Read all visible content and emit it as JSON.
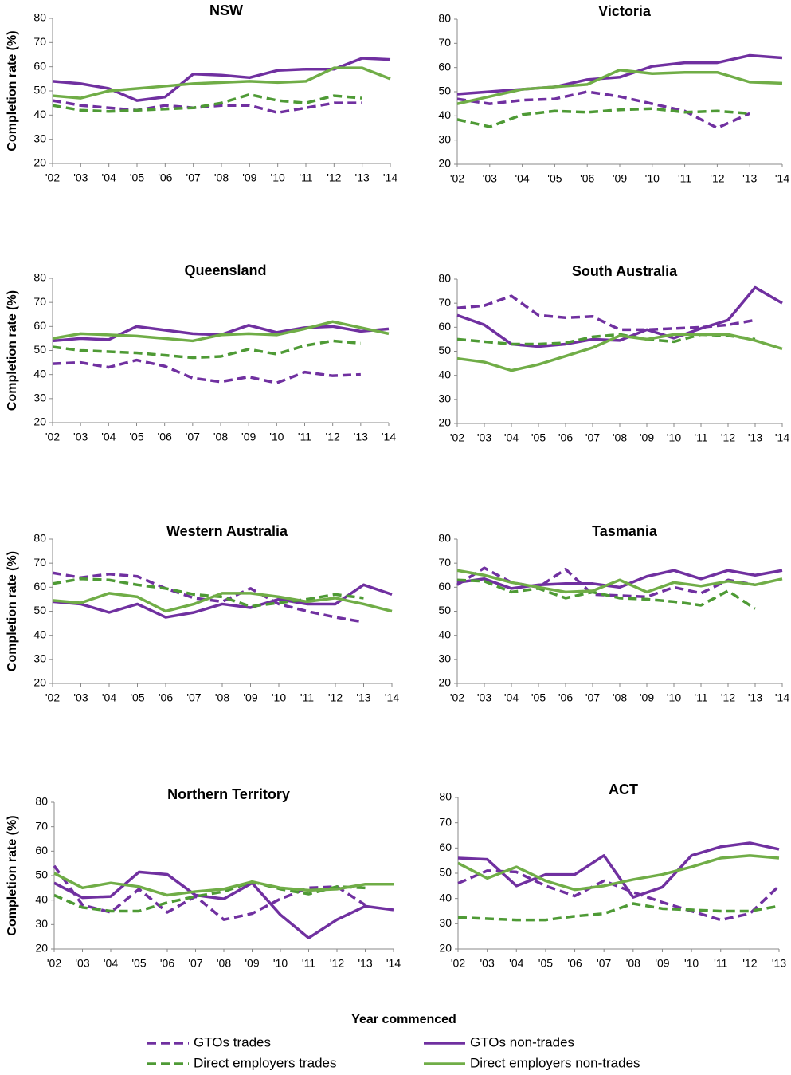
{
  "xlabel": "Year commenced",
  "legend": [
    {
      "name": "GTOs trades",
      "color": "#7030a0",
      "dashed": true
    },
    {
      "name": "GTOs non-trades",
      "color": "#7030a0",
      "dashed": false
    },
    {
      "name": "Direct employers trades",
      "color": "#4e9a35",
      "dashed": true
    },
    {
      "name": "Direct employers non-trades",
      "color": "#70ad47",
      "dashed": false
    }
  ],
  "chart_data": [
    {
      "type": "line",
      "title": "NSW",
      "ylabel": "Completion rate (%)",
      "ylim": [
        20,
        80
      ],
      "yticks": [
        20,
        30,
        40,
        50,
        60,
        70,
        80
      ],
      "categories": [
        "'02",
        "'03",
        "'04",
        "'05",
        "'06",
        "'07",
        "'08",
        "'09",
        "'10",
        "'11",
        "'12",
        "'13",
        "'14"
      ],
      "series": [
        {
          "values": [
            46,
            44,
            43,
            42,
            44,
            43,
            44,
            44,
            41,
            43,
            45,
            45,
            null
          ]
        },
        {
          "values": [
            54,
            53,
            51,
            46,
            47.5,
            57,
            56.5,
            55.5,
            58.5,
            59,
            59,
            63.5,
            63
          ]
        },
        {
          "values": [
            44,
            42,
            41.5,
            42,
            42.5,
            43,
            45,
            48.5,
            46,
            45,
            48,
            47,
            null
          ]
        },
        {
          "values": [
            48,
            47,
            50,
            51,
            52,
            53,
            53.5,
            54,
            53.5,
            54,
            59.5,
            59.5,
            55
          ]
        }
      ]
    },
    {
      "type": "line",
      "title": "Victoria",
      "ylim": [
        20,
        80
      ],
      "yticks": [
        20,
        30,
        40,
        50,
        60,
        70,
        80
      ],
      "categories": [
        "'02",
        "'03",
        "'04",
        "'05",
        "'06",
        "'09",
        "'10",
        "'11",
        "'12",
        "'13",
        "'14"
      ],
      "series": [
        {
          "values": [
            47,
            45,
            46.5,
            47,
            50,
            48,
            45,
            42,
            35,
            41,
            null
          ]
        },
        {
          "values": [
            49,
            50,
            51,
            52,
            55,
            56,
            60.5,
            62,
            62,
            65,
            64
          ]
        },
        {
          "values": [
            38.5,
            35.5,
            40.5,
            42,
            41.5,
            42.5,
            43,
            41.5,
            42,
            41,
            null
          ]
        },
        {
          "values": [
            45,
            48,
            51,
            52,
            53,
            59,
            57.5,
            58,
            58,
            54,
            53.5
          ]
        }
      ]
    },
    {
      "type": "line",
      "title": "Queensland",
      "ylabel": "Completion rate (%)",
      "ylim": [
        20,
        80
      ],
      "yticks": [
        20,
        30,
        40,
        50,
        60,
        70,
        80
      ],
      "categories": [
        "'02",
        "'03",
        "'04",
        "'05",
        "'06",
        "'07",
        "'08",
        "'09",
        "'10",
        "'11",
        "'12",
        "'13",
        "'14"
      ],
      "series": [
        {
          "values": [
            44.5,
            45,
            43,
            46,
            43.5,
            38.5,
            37,
            39,
            36.5,
            41,
            39.5,
            40,
            null
          ]
        },
        {
          "values": [
            54,
            55,
            54.5,
            60,
            58.5,
            57,
            56.5,
            60.5,
            57.5,
            59.5,
            60,
            58,
            59
          ]
        },
        {
          "values": [
            51.5,
            50,
            49.5,
            49,
            48,
            47,
            47.5,
            50.5,
            48.5,
            52,
            54,
            53,
            null
          ]
        },
        {
          "values": [
            55,
            57,
            56.5,
            56,
            55,
            54,
            56.5,
            57,
            56.5,
            59,
            62,
            59.5,
            57
          ]
        }
      ]
    },
    {
      "type": "line",
      "title": "South Australia",
      "ylim": [
        20,
        80
      ],
      "yticks": [
        20,
        30,
        40,
        50,
        60,
        70,
        80
      ],
      "categories": [
        "'02",
        "'03",
        "'04",
        "'05",
        "'06",
        "'07",
        "'08",
        "'09",
        "'10",
        "'11",
        "'12",
        "'13",
        "'14"
      ],
      "series": [
        {
          "values": [
            68,
            69,
            73,
            65,
            64,
            64.5,
            59,
            59,
            59.5,
            60,
            61,
            63,
            null
          ]
        },
        {
          "values": [
            65,
            61,
            53,
            52,
            53,
            55,
            54.5,
            59,
            55.5,
            59.5,
            63,
            76.5,
            70
          ]
        },
        {
          "values": [
            55,
            54,
            53,
            53,
            53.5,
            56,
            57,
            55,
            54,
            57,
            56.5,
            55,
            null
          ]
        },
        {
          "values": [
            47,
            45.5,
            42,
            44.5,
            48,
            51.5,
            56.5,
            55,
            57,
            57,
            57,
            54.5,
            51
          ]
        }
      ]
    },
    {
      "type": "line",
      "title": "Western Australia",
      "ylabel": "Completion rate (%)",
      "ylim": [
        20,
        80
      ],
      "yticks": [
        20,
        30,
        40,
        50,
        60,
        70,
        80
      ],
      "categories": [
        "'02",
        "'03",
        "'04",
        "'05",
        "'06",
        "'07",
        "'08",
        "'09",
        "'10",
        "'11",
        "'12",
        "'13",
        "'14"
      ],
      "series": [
        {
          "values": [
            66,
            64,
            65.5,
            64.5,
            59.5,
            55.5,
            54,
            59.5,
            53,
            50,
            47.5,
            45.5,
            null
          ]
        },
        {
          "values": [
            54,
            53,
            49.5,
            53,
            47.5,
            49.5,
            53,
            51.5,
            55,
            53,
            53,
            61,
            57
          ]
        },
        {
          "values": [
            61.5,
            63.5,
            63,
            61,
            59.5,
            57,
            56,
            52,
            53.5,
            55,
            57,
            55.5,
            null
          ]
        },
        {
          "values": [
            54.5,
            53.5,
            57.5,
            56,
            50,
            53,
            57.5,
            57.5,
            56,
            54,
            55.5,
            53,
            50
          ]
        }
      ]
    },
    {
      "type": "line",
      "title": "Tasmania",
      "ylim": [
        20,
        80
      ],
      "yticks": [
        20,
        30,
        40,
        50,
        60,
        70,
        80
      ],
      "categories": [
        "'02",
        "'03",
        "'04",
        "'05",
        "'06",
        "'07",
        "'08",
        "'09",
        "'10",
        "'11",
        "'12",
        "'13",
        "'14"
      ],
      "series": [
        {
          "values": [
            61,
            68,
            62,
            60,
            67.5,
            57,
            56.5,
            56,
            60,
            57.5,
            63,
            61,
            null
          ]
        },
        {
          "values": [
            62,
            63.5,
            59.5,
            61,
            61.5,
            61.5,
            60,
            64.5,
            67,
            63.5,
            67,
            65,
            67
          ]
        },
        {
          "values": [
            63,
            62.5,
            58,
            59.5,
            55.5,
            58,
            55.5,
            55,
            54,
            52.5,
            58.5,
            51,
            null
          ]
        },
        {
          "values": [
            67,
            65,
            62,
            60,
            58,
            58.5,
            63,
            58,
            62,
            60.5,
            62.5,
            61,
            63.5
          ]
        }
      ]
    },
    {
      "type": "line",
      "title": "Northern Territory",
      "ylabel": "Completion rate (%)",
      "ylim": [
        20,
        80
      ],
      "yticks": [
        20,
        30,
        40,
        50,
        60,
        70,
        80
      ],
      "categories": [
        "'02",
        "'03",
        "'04",
        "'05",
        "'06",
        "'07",
        "'08",
        "'09",
        "'10",
        "'11",
        "'12",
        "'13",
        "'14"
      ],
      "series": [
        {
          "values": [
            54,
            38,
            35,
            44.5,
            35,
            41.5,
            32,
            34.5,
            40.5,
            45,
            45.5,
            38,
            null
          ]
        },
        {
          "values": [
            47,
            41,
            41.5,
            51.5,
            50.5,
            42,
            40.5,
            47,
            34,
            24.5,
            32,
            37.5,
            36
          ]
        },
        {
          "values": [
            42,
            37,
            35.5,
            35.5,
            39,
            41.5,
            43.5,
            47.5,
            44.5,
            42.5,
            45.5,
            45,
            null
          ]
        },
        {
          "values": [
            51,
            45,
            47,
            45.5,
            42,
            43.5,
            44.5,
            47.5,
            45,
            44,
            44.5,
            46.5,
            46.5
          ]
        }
      ]
    },
    {
      "type": "line",
      "title": "ACT",
      "ylim": [
        20,
        80
      ],
      "yticks": [
        20,
        30,
        40,
        50,
        60,
        70,
        80
      ],
      "categories": [
        "'02",
        "'03",
        "'04",
        "'05",
        "'06",
        "'07",
        "'08",
        "'09",
        "'10",
        "'11",
        "'12",
        "'13"
      ],
      "series": [
        {
          "values": [
            46,
            51,
            50.5,
            45,
            41,
            47,
            42.5,
            38.5,
            35,
            31.5,
            34,
            45
          ]
        },
        {
          "values": [
            56,
            55.5,
            45,
            49.5,
            49.5,
            57,
            40.5,
            44.5,
            57,
            60.5,
            62,
            59.5
          ]
        },
        {
          "values": [
            32.5,
            32,
            31.5,
            31.5,
            33,
            34,
            38,
            36,
            35.5,
            35,
            35,
            37
          ]
        },
        {
          "values": [
            54,
            48,
            52.5,
            47,
            43.5,
            45,
            47.5,
            49.5,
            52.5,
            56,
            57,
            56
          ]
        }
      ]
    }
  ]
}
